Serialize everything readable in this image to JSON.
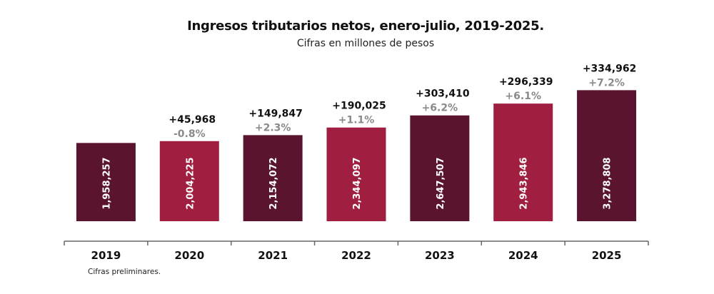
{
  "chart_data": {
    "type": "bar",
    "title": "Ingresos tributarios netos, enero-julio, 2019-2025.",
    "subtitle": "Cifras en millones de pesos",
    "note": "Cifras preliminares.",
    "categories": [
      "2019",
      "2020",
      "2021",
      "2022",
      "2023",
      "2024",
      "2025"
    ],
    "values": [
      1958257,
      2004225,
      2154072,
      2344097,
      2647507,
      2943846,
      3278808
    ],
    "value_labels": [
      "1,958,257",
      "2,004,225",
      "2,154,072",
      "2,344,097",
      "2,647,507",
      "2,943,846",
      "3,278,808"
    ],
    "diff_labels": [
      "",
      "+45,968",
      "+149,847",
      "+190,025",
      "+303,410",
      "+296,339",
      "+334,962"
    ],
    "pct_labels": [
      "",
      "-0.8%",
      "+2.3%",
      "+1.1%",
      "+6.2%",
      "+6.1%",
      "+7.2%"
    ],
    "ylim": [
      0,
      3500000
    ],
    "grid": false,
    "colors": [
      "#5a1430",
      "#a01f40",
      "#5a1430",
      "#a01f40",
      "#5a1430",
      "#a01f40",
      "#5a1430"
    ],
    "pct_color": "#8a8a8a"
  }
}
